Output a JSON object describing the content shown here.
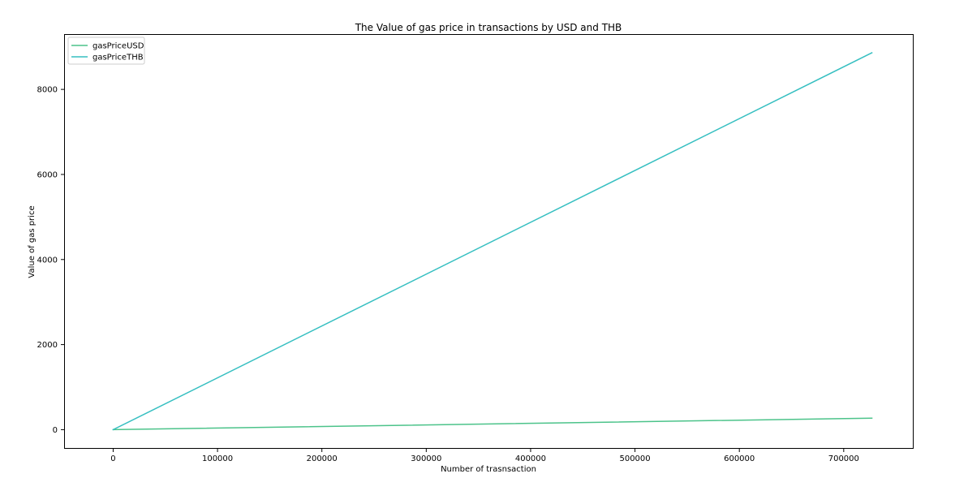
{
  "chart_data": {
    "type": "line",
    "title": "The Value of gas price in transactions by USD and THB",
    "xlabel": "Number of trasnsaction",
    "ylabel": "Value of gas price",
    "xlim": [
      -47000,
      767000
    ],
    "ylim": [
      -450,
      9300
    ],
    "x_ticks": [
      0,
      100000,
      200000,
      300000,
      400000,
      500000,
      600000,
      700000
    ],
    "y_ticks": [
      0,
      2000,
      4000,
      6000,
      8000
    ],
    "grid": false,
    "legend_position": "top-left",
    "series": [
      {
        "name": "gasPriceUSD",
        "color": "#4cc38a",
        "x": [
          0,
          727000
        ],
        "y": [
          0,
          270
        ]
      },
      {
        "name": "gasPriceTHB",
        "color": "#36bfc1",
        "x": [
          0,
          727000
        ],
        "y": [
          0,
          8860
        ]
      }
    ]
  }
}
